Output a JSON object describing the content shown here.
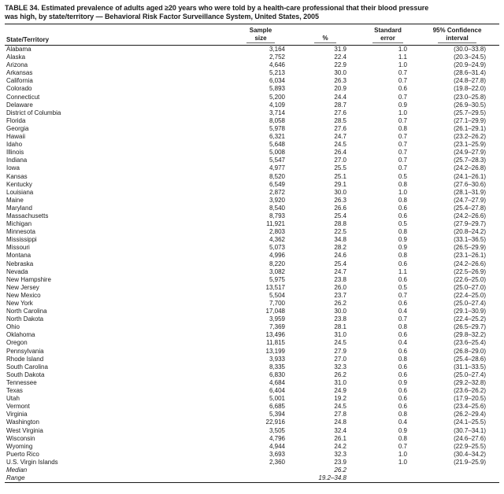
{
  "table": {
    "title_lines": [
      "TABLE 34. Estimated prevalence of adults aged ≥20 years who were told by a health-care professional that their blood pressure",
      "was high, by state/territory — Behavioral Risk Factor Surveillance System, United States, 2005"
    ],
    "columns": {
      "state": "State/Territory",
      "sample_l1": "Sample",
      "sample_l2": "size",
      "percent": "%",
      "se_l1": "Standard",
      "se_l2": "error",
      "ci_l1": "95% Confidence",
      "ci_l2": "interval"
    },
    "rows": [
      {
        "state": "Alabama",
        "sample": "3,164",
        "pct": "31.9",
        "se": "1.0",
        "ci": "(30.0–33.8)"
      },
      {
        "state": "Alaska",
        "sample": "2,752",
        "pct": "22.4",
        "se": "1.1",
        "ci": "(20.3–24.5)"
      },
      {
        "state": "Arizona",
        "sample": "4,646",
        "pct": "22.9",
        "se": "1.0",
        "ci": "(20.9–24.9)"
      },
      {
        "state": "Arkansas",
        "sample": "5,213",
        "pct": "30.0",
        "se": "0.7",
        "ci": "(28.6–31.4)"
      },
      {
        "state": "California",
        "sample": "6,034",
        "pct": "26.3",
        "se": "0.7",
        "ci": "(24.8–27.8)"
      },
      {
        "state": "Colorado",
        "sample": "5,893",
        "pct": "20.9",
        "se": "0.6",
        "ci": "(19.8–22.0)"
      },
      {
        "state": "Connecticut",
        "sample": "5,200",
        "pct": "24.4",
        "se": "0.7",
        "ci": "(23.0–25.8)"
      },
      {
        "state": "Delaware",
        "sample": "4,109",
        "pct": "28.7",
        "se": "0.9",
        "ci": "(26.9–30.5)"
      },
      {
        "state": "District of Columbia",
        "sample": "3,714",
        "pct": "27.6",
        "se": "1.0",
        "ci": "(25.7–29.5)"
      },
      {
        "state": "Florida",
        "sample": "8,058",
        "pct": "28.5",
        "se": "0.7",
        "ci": "(27.1–29.9)"
      },
      {
        "state": "Georgia",
        "sample": "5,978",
        "pct": "27.6",
        "se": "0.8",
        "ci": "(26.1–29.1)"
      },
      {
        "state": "Hawaii",
        "sample": "6,321",
        "pct": "24.7",
        "se": "0.7",
        "ci": "(23.2–26.2)"
      },
      {
        "state": "Idaho",
        "sample": "5,648",
        "pct": "24.5",
        "se": "0.7",
        "ci": "(23.1–25.9)"
      },
      {
        "state": "Illinois",
        "sample": "5,008",
        "pct": "26.4",
        "se": "0.7",
        "ci": "(24.9–27.9)"
      },
      {
        "state": "Indiana",
        "sample": "5,547",
        "pct": "27.0",
        "se": "0.7",
        "ci": "(25.7–28.3)"
      },
      {
        "state": "Iowa",
        "sample": "4,977",
        "pct": "25.5",
        "se": "0.7",
        "ci": "(24.2–26.8)"
      },
      {
        "state": "Kansas",
        "sample": "8,520",
        "pct": "25.1",
        "se": "0.5",
        "ci": "(24.1–26.1)"
      },
      {
        "state": "Kentucky",
        "sample": "6,549",
        "pct": "29.1",
        "se": "0.8",
        "ci": "(27.6–30.6)"
      },
      {
        "state": "Louisiana",
        "sample": "2,872",
        "pct": "30.0",
        "se": "1.0",
        "ci": "(28.1–31.9)"
      },
      {
        "state": "Maine",
        "sample": "3,920",
        "pct": "26.3",
        "se": "0.8",
        "ci": "(24.7–27.9)"
      },
      {
        "state": "Maryland",
        "sample": "8,540",
        "pct": "26.6",
        "se": "0.6",
        "ci": "(25.4–27.8)"
      },
      {
        "state": "Massachusetts",
        "sample": "8,793",
        "pct": "25.4",
        "se": "0.6",
        "ci": "(24.2–26.6)"
      },
      {
        "state": "Michigan",
        "sample": "11,921",
        "pct": "28.8",
        "se": "0.5",
        "ci": "(27.9–29.7)"
      },
      {
        "state": "Minnesota",
        "sample": "2,803",
        "pct": "22.5",
        "se": "0.8",
        "ci": "(20.8–24.2)"
      },
      {
        "state": "Mississippi",
        "sample": "4,362",
        "pct": "34.8",
        "se": "0.9",
        "ci": "(33.1–36.5)"
      },
      {
        "state": "Missouri",
        "sample": "5,073",
        "pct": "28.2",
        "se": "0.9",
        "ci": "(26.5–29.9)"
      },
      {
        "state": "Montana",
        "sample": "4,996",
        "pct": "24.6",
        "se": "0.8",
        "ci": "(23.1–26.1)"
      },
      {
        "state": "Nebraska",
        "sample": "8,220",
        "pct": "25.4",
        "se": "0.6",
        "ci": "(24.2–26.6)"
      },
      {
        "state": "Nevada",
        "sample": "3,082",
        "pct": "24.7",
        "se": "1.1",
        "ci": "(22.5–26.9)"
      },
      {
        "state": "New Hampshire",
        "sample": "5,975",
        "pct": "23.8",
        "se": "0.6",
        "ci": "(22.6–25.0)"
      },
      {
        "state": "New Jersey",
        "sample": "13,517",
        "pct": "26.0",
        "se": "0.5",
        "ci": "(25.0–27.0)"
      },
      {
        "state": "New Mexico",
        "sample": "5,504",
        "pct": "23.7",
        "se": "0.7",
        "ci": "(22.4–25.0)"
      },
      {
        "state": "New York",
        "sample": "7,700",
        "pct": "26.2",
        "se": "0.6",
        "ci": "(25.0–27.4)"
      },
      {
        "state": "North Carolina",
        "sample": "17,048",
        "pct": "30.0",
        "se": "0.4",
        "ci": "(29.1–30.9)"
      },
      {
        "state": "North Dakota",
        "sample": "3,959",
        "pct": "23.8",
        "se": "0.7",
        "ci": "(22.4–25.2)"
      },
      {
        "state": "Ohio",
        "sample": "7,369",
        "pct": "28.1",
        "se": "0.8",
        "ci": "(26.5–29.7)"
      },
      {
        "state": "Oklahoma",
        "sample": "13,496",
        "pct": "31.0",
        "se": "0.6",
        "ci": "(29.8–32.2)"
      },
      {
        "state": "Oregon",
        "sample": "11,815",
        "pct": "24.5",
        "se": "0.4",
        "ci": "(23.6–25.4)"
      },
      {
        "state": "Pennsylvania",
        "sample": "13,199",
        "pct": "27.9",
        "se": "0.6",
        "ci": "(26.8–29.0)"
      },
      {
        "state": "Rhode Island",
        "sample": "3,933",
        "pct": "27.0",
        "se": "0.8",
        "ci": "(25.4–28.6)"
      },
      {
        "state": "South Carolina",
        "sample": "8,335",
        "pct": "32.3",
        "se": "0.6",
        "ci": "(31.1–33.5)"
      },
      {
        "state": "South Dakota",
        "sample": "6,830",
        "pct": "26.2",
        "se": "0.6",
        "ci": "(25.0–27.4)"
      },
      {
        "state": "Tennessee",
        "sample": "4,684",
        "pct": "31.0",
        "se": "0.9",
        "ci": "(29.2–32.8)"
      },
      {
        "state": "Texas",
        "sample": "6,404",
        "pct": "24.9",
        "se": "0.6",
        "ci": "(23.6–26.2)"
      },
      {
        "state": "Utah",
        "sample": "5,001",
        "pct": "19.2",
        "se": "0.6",
        "ci": "(17.9–20.5)"
      },
      {
        "state": "Vermont",
        "sample": "6,685",
        "pct": "24.5",
        "se": "0.6",
        "ci": "(23.4–25.6)"
      },
      {
        "state": "Virginia",
        "sample": "5,394",
        "pct": "27.8",
        "se": "0.8",
        "ci": "(26.2–29.4)"
      },
      {
        "state": "Washington",
        "sample": "22,916",
        "pct": "24.8",
        "se": "0.4",
        "ci": "(24.1–25.5)"
      },
      {
        "state": "West Virginia",
        "sample": "3,505",
        "pct": "32.4",
        "se": "0.9",
        "ci": "(30.7–34.1)"
      },
      {
        "state": "Wisconsin",
        "sample": "4,796",
        "pct": "26.1",
        "se": "0.8",
        "ci": "(24.6–27.6)"
      },
      {
        "state": "Wyoming",
        "sample": "4,944",
        "pct": "24.2",
        "se": "0.7",
        "ci": "(22.9–25.5)"
      },
      {
        "state": "Puerto Rico",
        "sample": "3,693",
        "pct": "32.3",
        "se": "1.0",
        "ci": "(30.4–34.2)"
      },
      {
        "state": "U.S. Virgin Islands",
        "sample": "2,360",
        "pct": "23.9",
        "se": "1.0",
        "ci": "(21.9–25.9)"
      }
    ],
    "summary_rows": [
      {
        "label": "Median",
        "value": "26.2"
      },
      {
        "label": "Range",
        "value": "19.2–34.8"
      }
    ]
  },
  "colors": {
    "background": "#ffffff",
    "text": "#1a1a1a",
    "rule": "#1a1a1a",
    "header_hairline": "#6a6a6a"
  }
}
